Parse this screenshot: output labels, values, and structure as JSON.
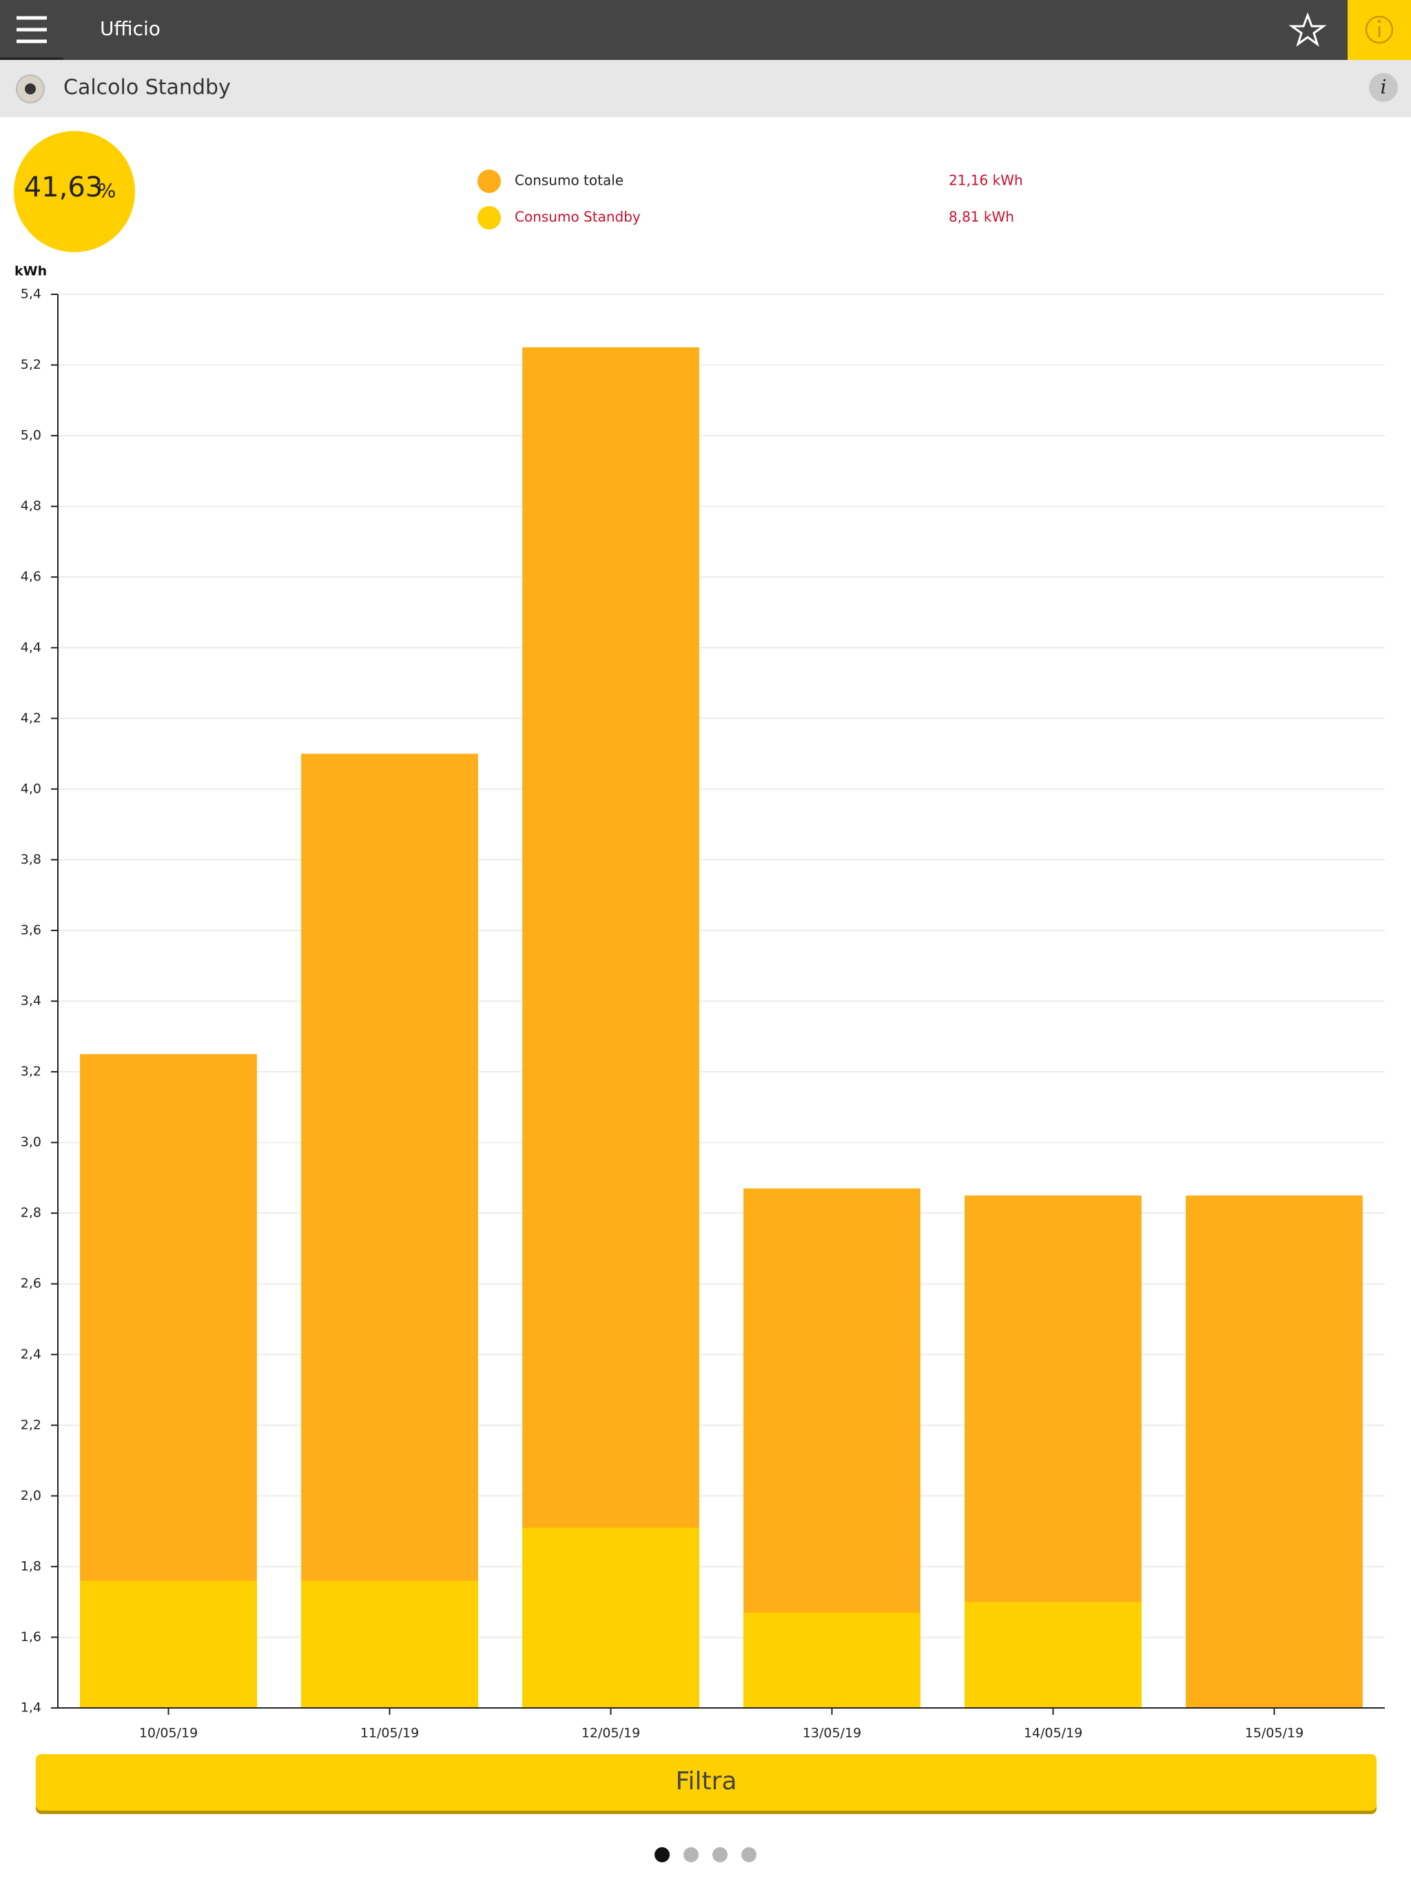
{
  "header": {
    "title": "Ufficio"
  },
  "subheader": {
    "title": "Calcolo Standby"
  },
  "summary": {
    "percentage": "41,63",
    "unit": "%"
  },
  "chart_data": {
    "type": "bar",
    "barmode": "overlay",
    "ylabel": "kWh",
    "categories": [
      "10/05/19",
      "11/05/19",
      "12/05/19",
      "13/05/19",
      "14/05/19",
      "15/05/19"
    ],
    "series": [
      {
        "name": "Consumo totale",
        "total": "21,16 kWh",
        "color": "#fdae19",
        "values": [
          3.25,
          4.1,
          5.25,
          2.87,
          2.85,
          2.85
        ]
      },
      {
        "name": "Consumo Standby",
        "total": "8,81 kWh",
        "color": "#ffd000",
        "values": [
          1.76,
          1.76,
          1.91,
          1.67,
          1.7,
          null
        ]
      }
    ],
    "ylim": [
      1.4,
      5.4
    ],
    "yticks": [
      {
        "value": 1.4,
        "label": "1,4"
      },
      {
        "value": 1.6,
        "label": "1,6"
      },
      {
        "value": 1.8,
        "label": "1,8"
      },
      {
        "value": 2.0,
        "label": "2,0"
      },
      {
        "value": 2.2,
        "label": "2,2"
      },
      {
        "value": 2.4,
        "label": "2,4"
      },
      {
        "value": 2.6,
        "label": "2,6"
      },
      {
        "value": 2.8,
        "label": "2,8"
      },
      {
        "value": 3.0,
        "label": "3,0"
      },
      {
        "value": 3.2,
        "label": "3,2"
      },
      {
        "value": 3.4,
        "label": "3,4"
      },
      {
        "value": 3.6,
        "label": "3,6"
      },
      {
        "value": 3.8,
        "label": "3,8"
      },
      {
        "value": 4.0,
        "label": "4,0"
      },
      {
        "value": 4.2,
        "label": "4,2"
      },
      {
        "value": 4.4,
        "label": "4,4"
      },
      {
        "value": 4.6,
        "label": "4,6"
      },
      {
        "value": 4.8,
        "label": "4,8"
      },
      {
        "value": 5.0,
        "label": "5,0"
      },
      {
        "value": 5.2,
        "label": "5,2"
      },
      {
        "value": 5.4,
        "label": "5,4"
      }
    ],
    "grid": true
  },
  "button": {
    "label": "Filtra"
  }
}
